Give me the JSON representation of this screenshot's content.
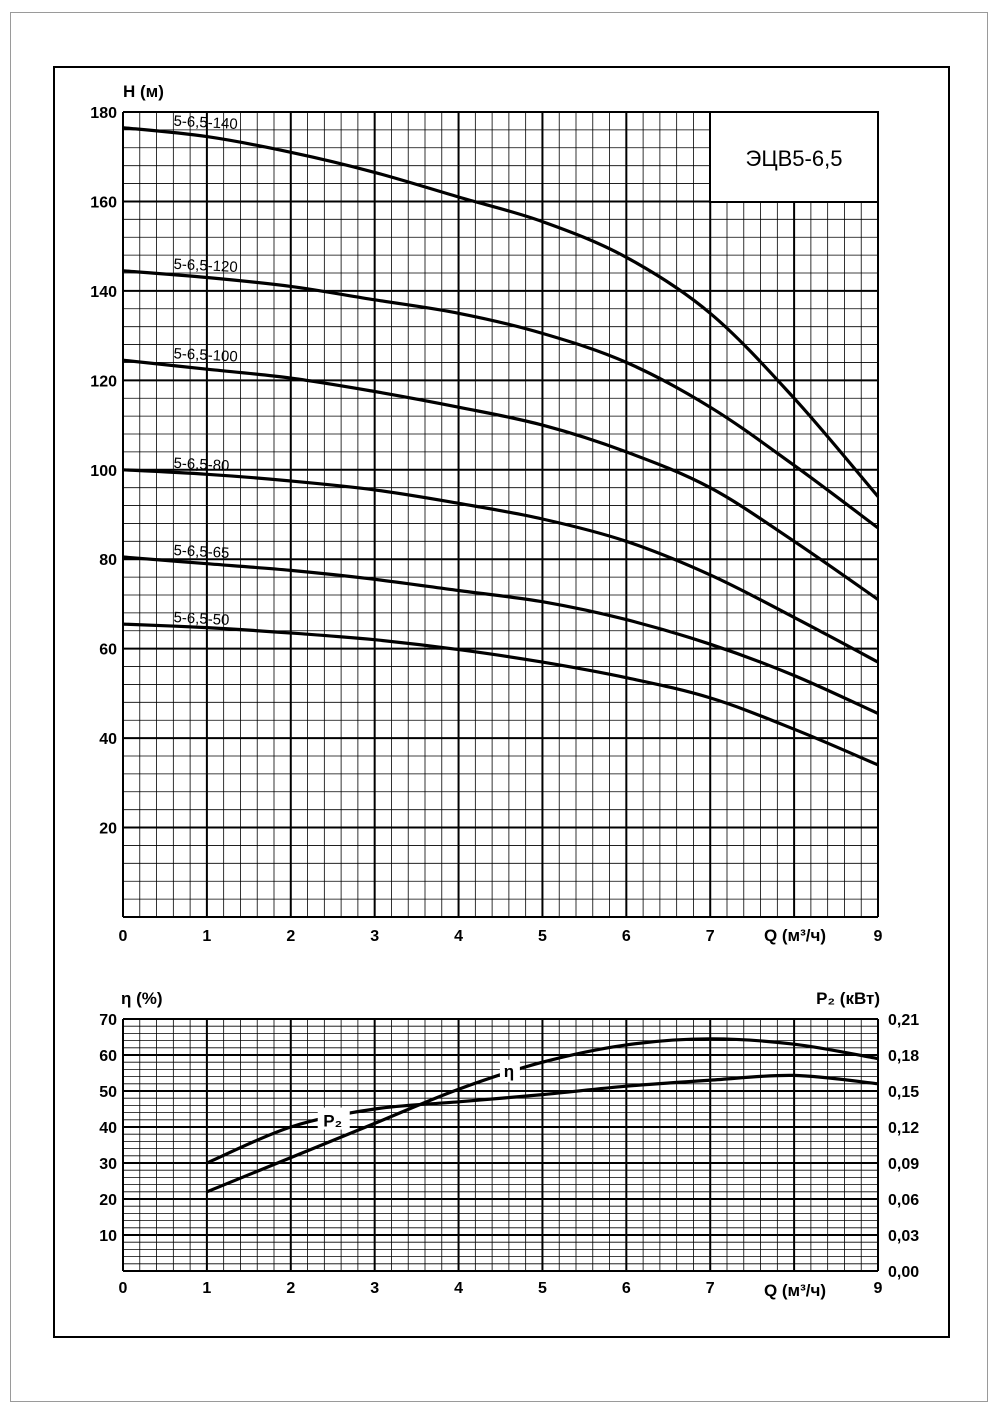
{
  "chart_data": [
    {
      "type": "line",
      "title": "ЭЦВ5-6,5",
      "xlabel": "Q (м³/ч)",
      "ylabel": "H (м)",
      "xlim": [
        0,
        9
      ],
      "ylim": [
        0,
        180
      ],
      "x_ticks": [
        "0",
        "1",
        "2",
        "3",
        "4",
        "5",
        "6",
        "7",
        "9"
      ],
      "y_ticks": [
        "20",
        "40",
        "60",
        "80",
        "100",
        "120",
        "140",
        "160",
        "180"
      ],
      "grid": true,
      "series": [
        {
          "name": "5-6,5-140",
          "x": [
            0,
            1,
            2,
            3,
            4,
            5,
            6,
            7,
            8,
            9
          ],
          "y": [
            176.5,
            174.5,
            171,
            166.5,
            161,
            155.5,
            147.5,
            135,
            116,
            94
          ]
        },
        {
          "name": "5-6,5-120",
          "x": [
            0,
            1,
            2,
            3,
            4,
            5,
            6,
            7,
            8,
            9
          ],
          "y": [
            144.5,
            143,
            141,
            138,
            135,
            130.5,
            124,
            114,
            101,
            87
          ]
        },
        {
          "name": "5-6,5-100",
          "x": [
            0,
            1,
            2,
            3,
            4,
            5,
            6,
            7,
            8,
            9
          ],
          "y": [
            124.5,
            122.5,
            120.5,
            117.5,
            114,
            110,
            104,
            96,
            84,
            71
          ]
        },
        {
          "name": "5-6,5-80",
          "x": [
            0,
            1,
            2,
            3,
            4,
            5,
            6,
            7,
            8,
            9
          ],
          "y": [
            100,
            99,
            97.5,
            95.5,
            92.5,
            89,
            84,
            76.5,
            67,
            57
          ]
        },
        {
          "name": "5-6,5-65",
          "x": [
            0,
            1,
            2,
            3,
            4,
            5,
            6,
            7,
            8,
            9
          ],
          "y": [
            80.5,
            79,
            77.5,
            75.5,
            73,
            70.5,
            66.5,
            61,
            54,
            45.5
          ]
        },
        {
          "name": "5-6,5-50",
          "x": [
            0,
            1,
            2,
            3,
            4,
            5,
            6,
            7,
            8,
            9
          ],
          "y": [
            65.5,
            64.7,
            63.5,
            62,
            59.8,
            57,
            53.5,
            49,
            42,
            34
          ]
        }
      ]
    },
    {
      "type": "line",
      "xlabel": "Q (м³/ч)",
      "ylabel": "η (%)",
      "y2label": "P₂ (кВт)",
      "xlim": [
        0,
        9
      ],
      "ylim": [
        0,
        70
      ],
      "y2lim": [
        0,
        0.21
      ],
      "x_ticks": [
        "0",
        "1",
        "2",
        "3",
        "4",
        "5",
        "6",
        "7",
        "9"
      ],
      "y_ticks": [
        "10",
        "20",
        "30",
        "40",
        "50",
        "60",
        "70"
      ],
      "y2_ticks": [
        "0,00",
        "0,03",
        "0,06",
        "0,09",
        "0,12",
        "0,15",
        "0,18",
        "0,21"
      ],
      "grid": true,
      "series": [
        {
          "name": "η",
          "axis": "left",
          "x": [
            1,
            2,
            3,
            4,
            5,
            6,
            7,
            8,
            9
          ],
          "y": [
            22,
            31.5,
            41,
            50.5,
            58,
            62.8,
            64.5,
            63,
            59
          ]
        },
        {
          "name": "P₂",
          "axis": "right",
          "x": [
            1,
            2,
            3,
            4,
            5,
            6,
            7,
            8,
            9
          ],
          "y": [
            0.09,
            0.12,
            0.135,
            0.141,
            0.147,
            0.154,
            0.159,
            0.163,
            0.156
          ]
        }
      ]
    }
  ]
}
